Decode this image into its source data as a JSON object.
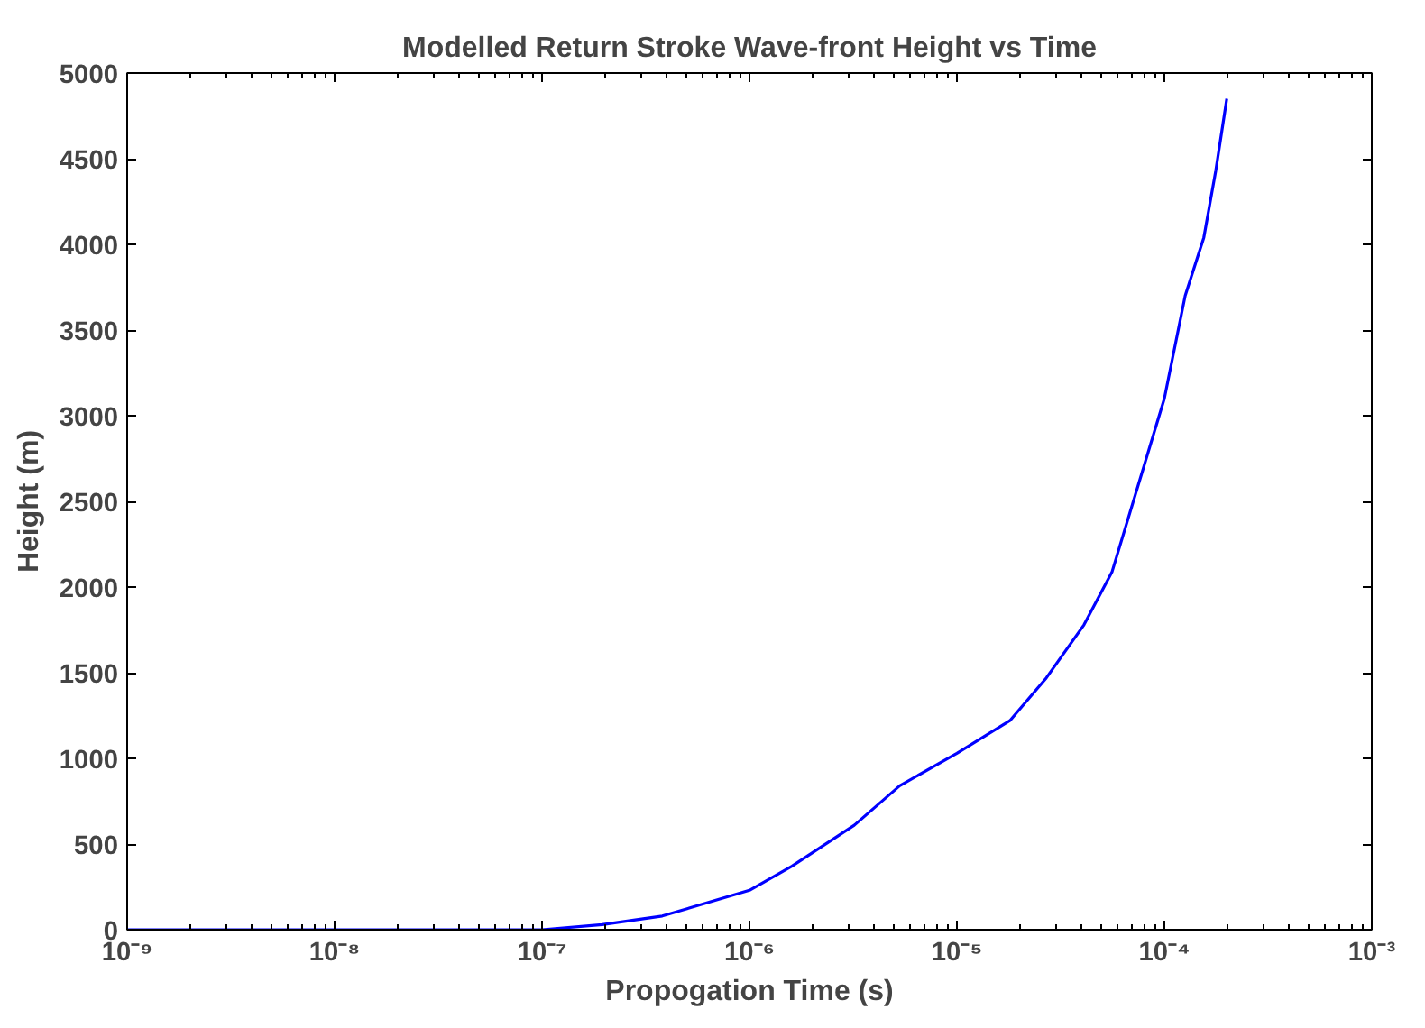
{
  "chart_data": {
    "type": "line",
    "title": "Modelled Return Stroke Wave-front Height vs Time",
    "xlabel": "Propogation Time (s)",
    "ylabel": "Height (m)",
    "log": "x",
    "marker": "none",
    "line_style": "solid",
    "xlim": [
      1e-09,
      0.001
    ],
    "ylim": [
      0,
      5000
    ],
    "xticks": [
      {
        "value": 1e-09,
        "label": "10⁻⁹"
      },
      {
        "value": 1e-08,
        "label": "10⁻⁸"
      },
      {
        "value": 1e-07,
        "label": "10⁻⁷"
      },
      {
        "value": 1e-06,
        "label": "10⁻⁶"
      },
      {
        "value": 1e-05,
        "label": "10⁻⁵"
      },
      {
        "value": 0.0001,
        "label": "10⁻⁴"
      },
      {
        "value": 0.001,
        "label": "10⁻³"
      }
    ],
    "yticks": [
      0,
      500,
      1000,
      1500,
      2000,
      2500,
      3000,
      3500,
      4000,
      4500,
      5000
    ],
    "series": [
      {
        "color": "#0000ff",
        "x": [
          1e-09,
          1e-08,
          1e-07,
          1.95e-07,
          3.8e-07,
          1e-06,
          1.6e-06,
          3.2e-06,
          5.3e-06,
          1e-05,
          1.8e-05,
          2.7e-05,
          4.1e-05,
          5.6e-05,
          0.0001,
          0.000126,
          0.000155,
          0.000177,
          0.0002
        ],
        "values": [
          0,
          0,
          0,
          30,
          80,
          230,
          370,
          610,
          840,
          1030,
          1220,
          1470,
          1780,
          2090,
          3100,
          3700,
          4040,
          4430,
          4850
        ]
      }
    ]
  }
}
